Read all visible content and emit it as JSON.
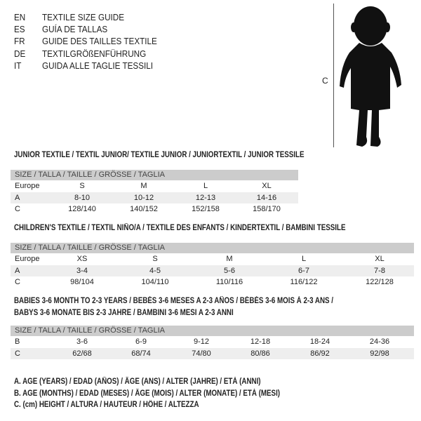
{
  "header": {
    "languages": [
      {
        "code": "EN",
        "title": "TEXTILE SIZE GUIDE"
      },
      {
        "code": "ES",
        "title": "GUÍA DE TALLAS"
      },
      {
        "code": "FR",
        "title": "GUIDE DES TAILLES TEXTILE"
      },
      {
        "code": "DE",
        "title": "TEXTILGRÖßENFÜHRUNG"
      },
      {
        "code": "IT",
        "title": "GUIDA ALLE TAGLIE TESSILI"
      }
    ]
  },
  "figure": {
    "marker": "C",
    "icon": "child-silhouette"
  },
  "size_header": "SIZE / TALLA / TAILLE / GRÖSSE / TAGLIA",
  "tables": [
    {
      "title": "JUNIOR TEXTILE / TEXTIL JUNIOR/ TEXTILE JUNIOR / JUNIORTEXTIL / JUNIOR TESSILE",
      "rows": [
        {
          "label": "Europe",
          "values": [
            "S",
            "M",
            "L",
            "XL"
          ]
        },
        {
          "label": "A",
          "values": [
            "8-10",
            "10-12",
            "12-13",
            "14-16"
          ]
        },
        {
          "label": "C",
          "values": [
            "128/140",
            "140/152",
            "152/158",
            "158/170"
          ]
        }
      ]
    },
    {
      "title": "CHILDREN'S TEXTILE / TEXTIL NIÑO/A / TEXTILE DES ENFANTS / KINDERTEXTIL / BAMBINI TESSILE",
      "rows": [
        {
          "label": "Europe",
          "values": [
            "XS",
            "S",
            "M",
            "L",
            "XL"
          ]
        },
        {
          "label": "A",
          "values": [
            "3-4",
            "4-5",
            "5-6",
            "6-7",
            "7-8"
          ]
        },
        {
          "label": "C",
          "values": [
            "98/104",
            "104/110",
            "110/116",
            "116/122",
            "122/128"
          ]
        }
      ]
    },
    {
      "title": "BABIES 3-6 MONTH TO 2-3 YEARS / BEBÉS 3-6 MESES A 2-3 AÑOS / BÉBÉS 3-6 MOIS À 2-3 ANS /",
      "title2": "BABYS 3-6 MONATE BIS 2-3 JAHRE / BAMBINI 3-6 MESI A 2-3 ANNI",
      "rows": [
        {
          "label": "B",
          "values": [
            "3-6",
            "6-9",
            "9-12",
            "12-18",
            "18-24",
            "24-36"
          ]
        },
        {
          "label": "C",
          "values": [
            "62/68",
            "68/74",
            "74/80",
            "80/86",
            "86/92",
            "92/98"
          ]
        }
      ]
    }
  ],
  "legend": [
    "A. AGE (YEARS) / EDAD (AÑOS) / ÂGE (ANS) / ALTER (JAHRE) / ETÀ (ANNI)",
    "B. AGE (MONTHS) / EDAD (MESES) / ÂGE (MOIS) / ALTER (MONATE) / ETÀ (MESI)",
    "C. (cm) HEIGHT / ALTURA / HAUTEUR / HÖHE / ALTEZZA"
  ]
}
